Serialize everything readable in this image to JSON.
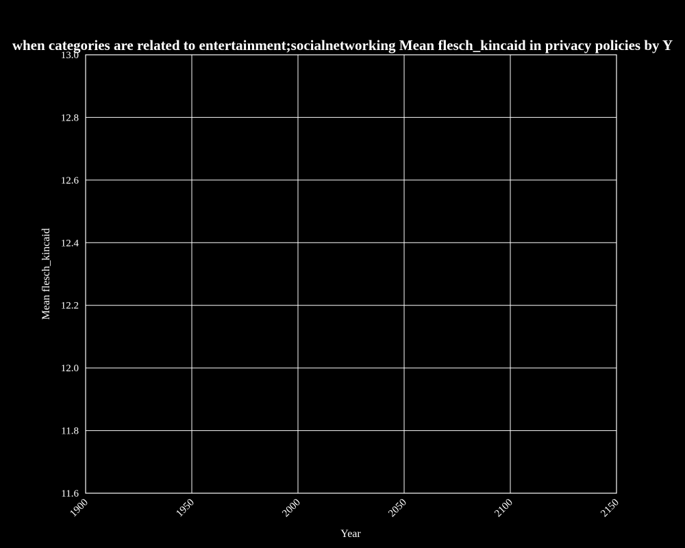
{
  "chart_data": {
    "type": "line",
    "title": "Mean flesch_kincaid in privacy policies by Year when categories are related to entertainment;socialnetworking",
    "title_visible": "when categories are related to entertainment;socialnetworking Mean flesch_kincaid in privacy policies by Y",
    "xlabel": "Year",
    "ylabel": "Mean flesch_kincaid",
    "xlim": [
      1900,
      2150
    ],
    "ylim": [
      11.6,
      13.0
    ],
    "xticks": [
      1900,
      1950,
      2000,
      2050,
      2100,
      2150
    ],
    "xtick_labels": [
      "1900",
      "1950",
      "2000",
      "2050",
      "2100",
      "2150"
    ],
    "yticks": [
      11.6,
      11.8,
      12.0,
      12.2,
      12.4,
      12.6,
      12.8,
      13.0
    ],
    "ytick_labels": [
      "11.6",
      "11.8",
      "12.0",
      "12.2",
      "12.4",
      "12.6",
      "12.8",
      "13.0"
    ],
    "grid": true,
    "series": [],
    "colors": {
      "background": "#000000",
      "foreground": "#ffffff"
    }
  }
}
